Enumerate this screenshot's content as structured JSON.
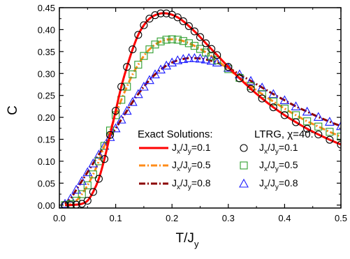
{
  "chart_data": {
    "type": "line",
    "xlabel": {
      "main": "T/J",
      "sub": "y"
    },
    "ylabel": "C",
    "xlim": [
      0.0,
      0.5
    ],
    "ylim": [
      -0.0067,
      0.45
    ],
    "x_ticks": [
      0.0,
      0.1,
      0.2,
      0.3,
      0.4,
      0.5
    ],
    "x_tick_labels": [
      "0.0",
      "0.1",
      "0.2",
      "0.3",
      "0.4",
      "0.5"
    ],
    "y_ticks": [
      0.0,
      0.05,
      0.1,
      0.15,
      0.2,
      0.25,
      0.3,
      0.35,
      0.4,
      0.45
    ],
    "y_tick_labels": [
      "0.00",
      "0.05",
      "0.10",
      "0.15",
      "0.20",
      "0.25",
      "0.30",
      "0.35",
      "0.40",
      "0.45"
    ],
    "grid": false,
    "legend": {
      "placement": "lower-right",
      "exact_header": "Exact Solutions:",
      "ltrg_header": "LTRG, χ=40:"
    },
    "series": [
      {
        "kind": "exact",
        "label_main": "J",
        "label_sub1": "x",
        "label_mid": "/J",
        "label_sub2": "y",
        "label_tail": "=0.1",
        "color": "#ff0000",
        "dash": "solid",
        "x": [
          0.01,
          0.02,
          0.03,
          0.04,
          0.05,
          0.06,
          0.07,
          0.08,
          0.09,
          0.1,
          0.11,
          0.12,
          0.13,
          0.14,
          0.15,
          0.16,
          0.17,
          0.18,
          0.19,
          0.2,
          0.21,
          0.22,
          0.23,
          0.24,
          0.25,
          0.26,
          0.28,
          0.3,
          0.32,
          0.34,
          0.36,
          0.38,
          0.4,
          0.42,
          0.44,
          0.46,
          0.48,
          0.5
        ],
        "y": [
          0.0,
          0.0,
          0.001,
          0.003,
          0.01,
          0.03,
          0.06,
          0.105,
          0.16,
          0.215,
          0.27,
          0.315,
          0.355,
          0.388,
          0.41,
          0.425,
          0.433,
          0.437,
          0.437,
          0.434,
          0.428,
          0.419,
          0.408,
          0.396,
          0.383,
          0.369,
          0.342,
          0.315,
          0.289,
          0.265,
          0.243,
          0.223,
          0.205,
          0.189,
          0.174,
          0.161,
          0.149,
          0.138
        ]
      },
      {
        "kind": "exact",
        "label_main": "J",
        "label_sub1": "x",
        "label_mid": "/J",
        "label_sub2": "y",
        "label_tail": "=0.5",
        "color": "#ff8c1a",
        "dash": "dash-dot",
        "x": [
          0.01,
          0.02,
          0.03,
          0.04,
          0.05,
          0.06,
          0.07,
          0.08,
          0.09,
          0.1,
          0.11,
          0.12,
          0.13,
          0.14,
          0.15,
          0.16,
          0.17,
          0.18,
          0.19,
          0.2,
          0.21,
          0.22,
          0.23,
          0.24,
          0.25,
          0.26,
          0.28,
          0.3,
          0.32,
          0.34,
          0.36,
          0.38,
          0.4,
          0.42,
          0.44,
          0.46,
          0.48,
          0.5
        ],
        "y": [
          0.0,
          0.002,
          0.01,
          0.025,
          0.045,
          0.07,
          0.1,
          0.135,
          0.17,
          0.205,
          0.24,
          0.27,
          0.298,
          0.32,
          0.34,
          0.355,
          0.366,
          0.373,
          0.377,
          0.378,
          0.377,
          0.374,
          0.369,
          0.363,
          0.356,
          0.348,
          0.33,
          0.31,
          0.29,
          0.271,
          0.253,
          0.236,
          0.22,
          0.205,
          0.191,
          0.179,
          0.167,
          0.156
        ]
      },
      {
        "kind": "exact",
        "label_main": "J",
        "label_sub1": "x",
        "label_mid": "/J",
        "label_sub2": "y",
        "label_tail": "=0.8",
        "color": "#8b0000",
        "dash": "dash-dot",
        "x": [
          0.01,
          0.02,
          0.03,
          0.04,
          0.05,
          0.06,
          0.07,
          0.08,
          0.09,
          0.1,
          0.11,
          0.12,
          0.13,
          0.14,
          0.15,
          0.16,
          0.17,
          0.18,
          0.19,
          0.2,
          0.21,
          0.22,
          0.23,
          0.24,
          0.25,
          0.26,
          0.27,
          0.28,
          0.3,
          0.32,
          0.34,
          0.36,
          0.38,
          0.4,
          0.42,
          0.44,
          0.46,
          0.48,
          0.5
        ],
        "y": [
          0.003,
          0.015,
          0.035,
          0.055,
          0.075,
          0.095,
          0.115,
          0.135,
          0.155,
          0.175,
          0.195,
          0.215,
          0.235,
          0.253,
          0.27,
          0.285,
          0.298,
          0.309,
          0.318,
          0.325,
          0.33,
          0.333,
          0.335,
          0.335,
          0.334,
          0.332,
          0.329,
          0.325,
          0.313,
          0.298,
          0.283,
          0.268,
          0.253,
          0.239,
          0.225,
          0.213,
          0.201,
          0.19,
          0.18
        ]
      },
      {
        "kind": "ltrg",
        "label_main": "J",
        "label_sub1": "x",
        "label_mid": "/J",
        "label_sub2": "y",
        "label_tail": "=0.1",
        "color": "#000000",
        "marker": "circle",
        "x": [
          0.01,
          0.02,
          0.03,
          0.04,
          0.05,
          0.06,
          0.07,
          0.08,
          0.09,
          0.1,
          0.11,
          0.12,
          0.13,
          0.14,
          0.15,
          0.16,
          0.17,
          0.18,
          0.19,
          0.2,
          0.21,
          0.22,
          0.23,
          0.24,
          0.25,
          0.26,
          0.27,
          0.28,
          0.3,
          0.32,
          0.34,
          0.36,
          0.38,
          0.4,
          0.42,
          0.44,
          0.46,
          0.48,
          0.5
        ],
        "y": [
          0.0,
          0.0,
          0.001,
          0.003,
          0.01,
          0.03,
          0.06,
          0.105,
          0.16,
          0.215,
          0.27,
          0.315,
          0.355,
          0.388,
          0.41,
          0.425,
          0.433,
          0.437,
          0.437,
          0.434,
          0.428,
          0.419,
          0.408,
          0.396,
          0.383,
          0.369,
          0.356,
          0.342,
          0.315,
          0.289,
          0.265,
          0.243,
          0.223,
          0.205,
          0.189,
          0.174,
          0.161,
          0.149,
          0.138
        ]
      },
      {
        "kind": "ltrg",
        "label_main": "J",
        "label_sub1": "x",
        "label_mid": "/J",
        "label_sub2": "y",
        "label_tail": "=0.5",
        "color": "#2e9e2e",
        "marker": "square",
        "x": [
          0.01,
          0.02,
          0.03,
          0.04,
          0.05,
          0.06,
          0.07,
          0.08,
          0.09,
          0.1,
          0.11,
          0.12,
          0.13,
          0.14,
          0.15,
          0.16,
          0.17,
          0.18,
          0.19,
          0.2,
          0.21,
          0.22,
          0.23,
          0.24,
          0.25,
          0.26,
          0.27,
          0.28,
          0.3,
          0.32,
          0.34,
          0.36,
          0.38,
          0.4,
          0.42,
          0.44,
          0.46,
          0.48,
          0.5
        ],
        "y": [
          0.0,
          0.002,
          0.01,
          0.025,
          0.045,
          0.07,
          0.1,
          0.135,
          0.17,
          0.205,
          0.24,
          0.27,
          0.298,
          0.32,
          0.34,
          0.355,
          0.366,
          0.373,
          0.377,
          0.378,
          0.377,
          0.374,
          0.369,
          0.363,
          0.356,
          0.348,
          0.339,
          0.33,
          0.31,
          0.29,
          0.271,
          0.253,
          0.236,
          0.22,
          0.205,
          0.191,
          0.179,
          0.167,
          0.156
        ]
      },
      {
        "kind": "ltrg",
        "label_main": "J",
        "label_sub1": "x",
        "label_mid": "/J",
        "label_sub2": "y",
        "label_tail": "=0.8",
        "color": "#1a1aff",
        "marker": "triangle",
        "x": [
          0.01,
          0.02,
          0.03,
          0.04,
          0.05,
          0.06,
          0.07,
          0.08,
          0.09,
          0.1,
          0.11,
          0.12,
          0.13,
          0.14,
          0.15,
          0.16,
          0.17,
          0.18,
          0.19,
          0.2,
          0.21,
          0.22,
          0.23,
          0.24,
          0.25,
          0.26,
          0.27,
          0.28,
          0.3,
          0.32,
          0.34,
          0.36,
          0.38,
          0.4,
          0.42,
          0.44,
          0.46,
          0.48,
          0.5
        ],
        "y": [
          0.003,
          0.015,
          0.035,
          0.055,
          0.075,
          0.095,
          0.115,
          0.135,
          0.155,
          0.175,
          0.195,
          0.215,
          0.235,
          0.253,
          0.27,
          0.285,
          0.298,
          0.309,
          0.318,
          0.325,
          0.33,
          0.333,
          0.335,
          0.335,
          0.334,
          0.332,
          0.329,
          0.325,
          0.313,
          0.298,
          0.283,
          0.268,
          0.253,
          0.239,
          0.225,
          0.213,
          0.201,
          0.19,
          0.18
        ]
      }
    ]
  }
}
